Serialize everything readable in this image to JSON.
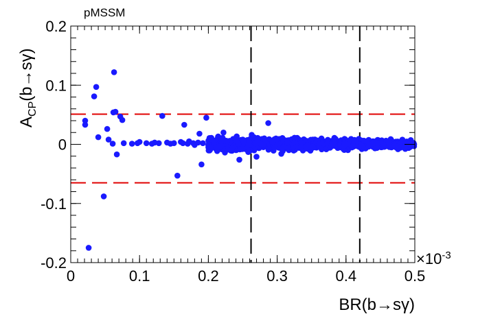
{
  "chart_data": {
    "type": "scatter",
    "title": "",
    "annotation": "pMSSM",
    "xlabel": "BR(b→sγ)",
    "ylabel_main": "A",
    "ylabel_sub": "CP",
    "ylabel_rest": "(b→sγ)",
    "x_multiplier_base": "×10",
    "x_multiplier_exp": "-3",
    "xlim": [
      0,
      0.5
    ],
    "ylim": [
      -0.2,
      0.2
    ],
    "x_ticks": [
      0,
      0.1,
      0.2,
      0.3,
      0.4,
      0.5
    ],
    "x_tick_labels": [
      "0",
      "0.1",
      "0.2",
      "0.3",
      "0.4",
      "0.5"
    ],
    "y_ticks": [
      -0.2,
      -0.1,
      0,
      0.1,
      0.2
    ],
    "y_tick_labels": [
      "-0.2",
      "-0.1",
      "0",
      "0.1",
      "0.2"
    ],
    "grid": false,
    "marker_color": "#1a1aff",
    "hlines": [
      {
        "y": 0.051,
        "color": "#e00000",
        "style": "dashed"
      },
      {
        "y": -0.065,
        "color": "#e00000",
        "style": "dashed"
      }
    ],
    "vlines": [
      {
        "x": 0.262,
        "color": "#000000",
        "style": "dashed"
      },
      {
        "x": 0.42,
        "color": "#000000",
        "style": "dashed"
      }
    ],
    "series": [
      {
        "points": [
          [
            0.021,
            0.04
          ],
          [
            0.021,
            0.033
          ],
          [
            0.026,
            -0.175
          ],
          [
            0.034,
            0.081
          ],
          [
            0.037,
            0.097
          ],
          [
            0.04,
            0.012
          ],
          [
            0.048,
            -0.088
          ],
          [
            0.053,
            0.026
          ],
          [
            0.055,
            0.008
          ],
          [
            0.061,
            0.001
          ],
          [
            0.062,
            0.054
          ],
          [
            0.063,
            0.122
          ],
          [
            0.065,
            0.055
          ],
          [
            0.067,
            -0.017
          ],
          [
            0.072,
            0.047
          ],
          [
            0.075,
            0.041
          ],
          [
            0.077,
            0.002
          ],
          [
            0.089,
            0.001
          ],
          [
            0.097,
            0.002
          ],
          [
            0.1,
            0.004
          ],
          [
            0.11,
            0.002
          ],
          [
            0.118,
            0.001
          ],
          [
            0.122,
            0.003
          ],
          [
            0.128,
            0.002
          ],
          [
            0.133,
            0.048
          ],
          [
            0.14,
            0.003
          ],
          [
            0.145,
            0.001
          ],
          [
            0.15,
            0.002
          ],
          [
            0.155,
            -0.053
          ],
          [
            0.16,
            0.004
          ],
          [
            0.163,
            0.002
          ],
          [
            0.165,
            0.033
          ],
          [
            0.17,
            0.001
          ],
          [
            0.172,
            0.005
          ],
          [
            0.178,
            0.002
          ],
          [
            0.18,
            -0.001
          ],
          [
            0.185,
            0.003
          ],
          [
            0.187,
            0.018
          ],
          [
            0.19,
            -0.034
          ],
          [
            0.192,
            0.002
          ],
          [
            0.197,
            0.045
          ],
          [
            0.2,
            0.006
          ],
          [
            0.203,
            -0.003
          ],
          [
            0.206,
            0.004
          ],
          [
            0.21,
            0.001
          ],
          [
            0.213,
            -0.007
          ],
          [
            0.214,
            0.012
          ],
          [
            0.218,
            0.003
          ],
          [
            0.222,
            0.02
          ],
          [
            0.224,
            -0.011
          ],
          [
            0.226,
            0.006
          ],
          [
            0.23,
            0.002
          ],
          [
            0.233,
            -0.009
          ],
          [
            0.236,
            0.009
          ],
          [
            0.239,
            -0.002
          ],
          [
            0.242,
            0.005
          ],
          [
            0.245,
            -0.026
          ],
          [
            0.248,
            0.001
          ],
          [
            0.25,
            0.008
          ],
          [
            0.254,
            -0.004
          ],
          [
            0.257,
            0.004
          ],
          [
            0.26,
            -0.01
          ],
          [
            0.263,
            0.016
          ],
          [
            0.266,
            0.003
          ],
          [
            0.268,
            -0.006
          ],
          [
            0.27,
            -0.021
          ],
          [
            0.272,
            0.005
          ],
          [
            0.275,
            0.001
          ],
          [
            0.278,
            0.009
          ],
          [
            0.281,
            -0.003
          ],
          [
            0.284,
            0.004
          ],
          [
            0.287,
            0.036
          ],
          [
            0.29,
            -0.007
          ],
          [
            0.293,
            0.002
          ],
          [
            0.296,
            0.006
          ],
          [
            0.3,
            -0.002
          ],
          [
            0.303,
            0.009
          ],
          [
            0.306,
            -0.016
          ],
          [
            0.309,
            0.003
          ],
          [
            0.312,
            0.0
          ],
          [
            0.316,
            0.007
          ],
          [
            0.319,
            -0.005
          ],
          [
            0.322,
            0.004
          ],
          [
            0.325,
            0.001
          ],
          [
            0.329,
            0.011
          ],
          [
            0.332,
            -0.006
          ],
          [
            0.335,
            0.003
          ],
          [
            0.338,
            -0.001
          ],
          [
            0.342,
            0.006
          ],
          [
            0.345,
            -0.004
          ],
          [
            0.348,
            0.002
          ],
          [
            0.352,
            0.008
          ],
          [
            0.356,
            -0.003
          ],
          [
            0.36,
            0.004
          ],
          [
            0.364,
            0.0
          ],
          [
            0.368,
            0.005
          ],
          [
            0.372,
            -0.005
          ],
          [
            0.376,
            0.002
          ],
          [
            0.38,
            0.006
          ],
          [
            0.384,
            -0.002
          ],
          [
            0.388,
            0.004
          ],
          [
            0.392,
            0.001
          ],
          [
            0.396,
            -0.004
          ],
          [
            0.4,
            0.003
          ],
          [
            0.404,
            0.006
          ],
          [
            0.408,
            -0.001
          ],
          [
            0.412,
            0.002
          ],
          [
            0.416,
            0.004
          ],
          [
            0.42,
            -0.003
          ],
          [
            0.425,
            0.001
          ],
          [
            0.43,
            0.005
          ],
          [
            0.435,
            -0.002
          ],
          [
            0.44,
            0.003
          ],
          [
            0.445,
            0.0
          ],
          [
            0.45,
            0.004
          ],
          [
            0.455,
            -0.003
          ],
          [
            0.46,
            0.002
          ],
          [
            0.465,
            0.005
          ],
          [
            0.47,
            -0.001
          ],
          [
            0.475,
            0.003
          ],
          [
            0.48,
            0.001
          ],
          [
            0.485,
            -0.002
          ],
          [
            0.49,
            0.002
          ],
          [
            0.495,
            0.001
          ],
          [
            0.499,
            0.0
          ]
        ]
      }
    ]
  }
}
